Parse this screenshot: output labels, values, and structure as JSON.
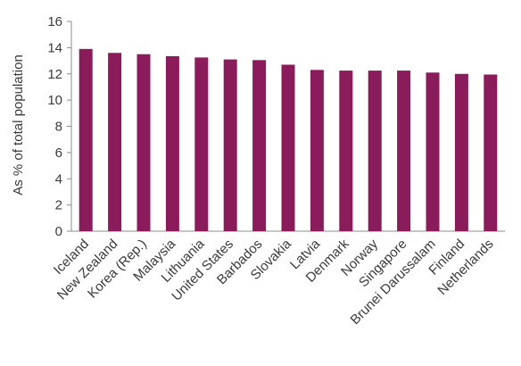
{
  "chart_data": {
    "type": "bar",
    "title": "",
    "xlabel": "",
    "ylabel": "As % of total population",
    "ylim": [
      0,
      16
    ],
    "yticks": [
      0,
      2,
      4,
      6,
      8,
      10,
      12,
      14,
      16
    ],
    "grid": false,
    "legend": "none",
    "bar_color": "#8B1C5C",
    "categories": [
      "Iceland",
      "New Zealand",
      "Korea (Rep.)",
      "Malaysia",
      "Lithuania",
      "United States",
      "Barbados",
      "Slovakia",
      "Latvia",
      "Denmark",
      "Norway",
      "Singapore",
      "Brunei Darussalam",
      "Finland",
      "Netherlands"
    ],
    "values": [
      13.9,
      13.6,
      13.5,
      13.35,
      13.25,
      13.1,
      13.05,
      12.7,
      12.3,
      12.25,
      12.25,
      12.25,
      12.1,
      12.0,
      11.95
    ]
  }
}
